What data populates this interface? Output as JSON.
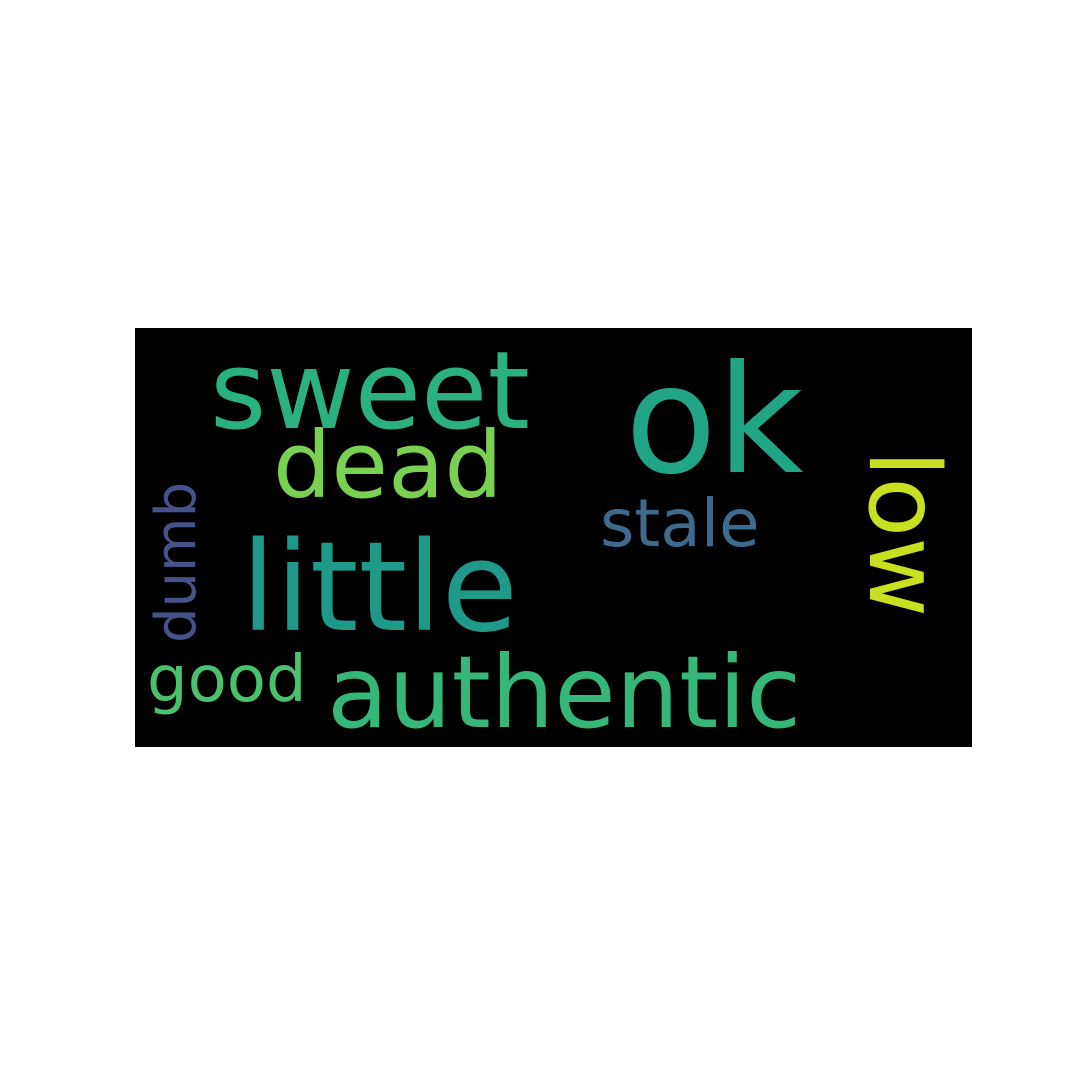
{
  "word_cloud": {
    "words": [
      {
        "text": "ok",
        "color": "#21a585"
      },
      {
        "text": "sweet",
        "color": "#2bb07f"
      },
      {
        "text": "dead",
        "color": "#7ad151"
      },
      {
        "text": "little",
        "color": "#1f9a8a"
      },
      {
        "text": "authentic",
        "color": "#35b779"
      },
      {
        "text": "good",
        "color": "#4ac16d"
      },
      {
        "text": "stale",
        "color": "#3e6a8e"
      },
      {
        "text": "low",
        "color": "#c7e020"
      },
      {
        "text": "dumb",
        "color": "#46538b"
      }
    ],
    "background": "#000000"
  }
}
